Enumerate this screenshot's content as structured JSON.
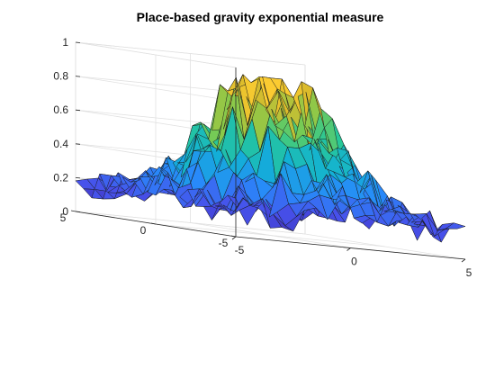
{
  "chart_data": {
    "type": "surface3d",
    "title": "Place-based gravity exponential measure",
    "xlim": [
      -5,
      5
    ],
    "ylim": [
      -5,
      5
    ],
    "zlim": [
      0,
      1
    ],
    "x_ticks": [
      "-5",
      "0",
      "5"
    ],
    "y_ticks": [
      "-5",
      "0",
      "5"
    ],
    "z_ticks": [
      "0",
      "0.2",
      "0.4",
      "0.6",
      "0.8",
      "1"
    ],
    "grid": true,
    "colormap": "parula",
    "grid_size": [
      21,
      21
    ],
    "surface": {
      "description": "Noisy radially decaying peak centred near the origin",
      "peak_z": 0.85,
      "base_z": 0.15,
      "decay_sigma": 2.1
    }
  }
}
